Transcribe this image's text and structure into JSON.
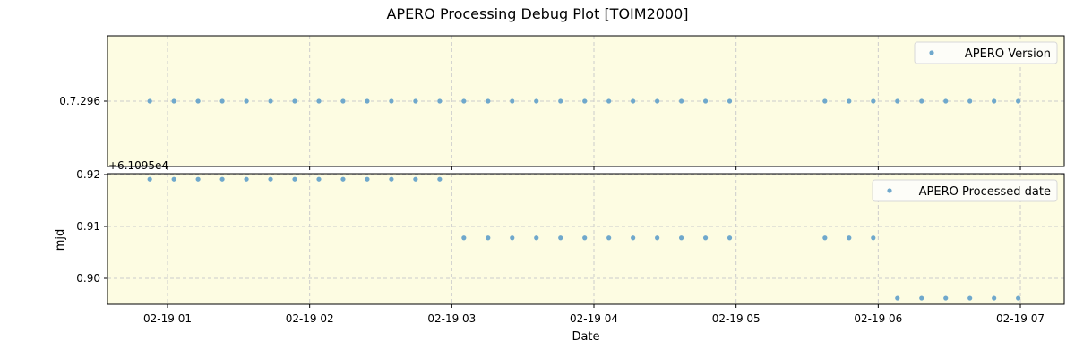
{
  "title": "APERO Processing Debug Plot [TOIM2000]",
  "colors": {
    "axes_bg": "#fdfce2",
    "marker": "#6fa8cc",
    "grid": "#cccccc"
  },
  "chart_data": [
    {
      "type": "scatter",
      "title": "APERO Processing Debug Plot [TOIM2000]",
      "legend": "APERO Version",
      "legend_position": "upper right",
      "ylabel": "",
      "yticks": [
        "0.7.296"
      ],
      "grid": true,
      "x_hours": [
        0.875,
        1.045,
        1.215,
        1.385,
        1.555,
        1.725,
        1.895,
        2.065,
        2.235,
        2.405,
        2.575,
        2.745,
        2.915,
        3.085,
        3.255,
        3.425,
        3.595,
        3.765,
        3.935,
        4.105,
        4.275,
        4.445,
        4.615,
        4.785,
        4.955,
        5.625,
        5.795,
        5.965,
        6.135,
        6.305,
        6.475,
        6.645,
        6.815,
        6.985
      ],
      "values": [
        "0.7.296",
        "0.7.296",
        "0.7.296",
        "0.7.296",
        "0.7.296",
        "0.7.296",
        "0.7.296",
        "0.7.296",
        "0.7.296",
        "0.7.296",
        "0.7.296",
        "0.7.296",
        "0.7.296",
        "0.7.296",
        "0.7.296",
        "0.7.296",
        "0.7.296",
        "0.7.296",
        "0.7.296",
        "0.7.296",
        "0.7.296",
        "0.7.296",
        "0.7.296",
        "0.7.296",
        "0.7.296",
        "0.7.296",
        "0.7.296",
        "0.7.296",
        "0.7.296",
        "0.7.296",
        "0.7.296",
        "0.7.296",
        "0.7.296",
        "0.7.296"
      ]
    },
    {
      "type": "scatter",
      "legend": "APERO Processed date",
      "legend_position": "upper right",
      "xlabel": "Date",
      "ylabel": "mjd",
      "offset_text": "+6.1095e4",
      "ylim": [
        0.895,
        0.9201
      ],
      "yticks": [
        0.92,
        0.91,
        0.9
      ],
      "ytick_labels": [
        "0.92",
        "0.91",
        "0.90"
      ],
      "xtick_labels": [
        "02-19 01",
        "02-19 02",
        "02-19 03",
        "02-19 04",
        "02-19 05",
        "02-19 06",
        "02-19 07"
      ],
      "grid": true,
      "x_hours": [
        0.875,
        1.045,
        1.215,
        1.385,
        1.555,
        1.725,
        1.895,
        2.065,
        2.235,
        2.405,
        2.575,
        2.745,
        2.915,
        3.085,
        3.255,
        3.425,
        3.595,
        3.765,
        3.935,
        4.105,
        4.275,
        4.445,
        4.615,
        4.785,
        4.955,
        5.625,
        5.795,
        5.965,
        6.135,
        6.305,
        6.475,
        6.645,
        6.815,
        6.985
      ],
      "values": [
        0.9191,
        0.9191,
        0.9191,
        0.9191,
        0.9191,
        0.9191,
        0.9191,
        0.9191,
        0.9191,
        0.9191,
        0.9191,
        0.9191,
        0.9191,
        0.9078,
        0.9078,
        0.9078,
        0.9078,
        0.9078,
        0.9078,
        0.9078,
        0.9078,
        0.9078,
        0.9078,
        0.9078,
        0.9078,
        0.9078,
        0.9078,
        0.9078,
        0.8962,
        0.8962,
        0.8962,
        0.8962,
        0.8962,
        0.8962
      ]
    }
  ]
}
